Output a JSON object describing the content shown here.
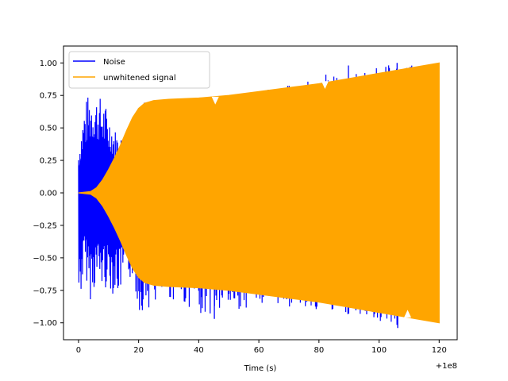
{
  "chart_data": {
    "type": "line",
    "title": "",
    "xlabel": "Time (s)",
    "ylabel": "",
    "x_offset_label": "+1e8",
    "xlim": [
      -5,
      126
    ],
    "ylim": [
      -1.13,
      1.13
    ],
    "x_ticks": [
      0,
      20,
      40,
      60,
      80,
      100,
      120
    ],
    "x_tick_labels": [
      "0",
      "20",
      "40",
      "60",
      "80",
      "100",
      "120"
    ],
    "y_ticks": [
      1.0,
      0.75,
      0.5,
      0.25,
      0.0,
      -0.25,
      -0.5,
      -0.75,
      -1.0
    ],
    "y_tick_labels": [
      "1.00",
      "0.75",
      "0.50",
      "0.25",
      "0.00",
      "−0.25",
      "−0.50",
      "−0.75",
      "−1.00"
    ],
    "grid": false,
    "legend_position": "top-left",
    "series": [
      {
        "name": "Noise",
        "color": "#0000ff",
        "x": [
          0,
          2,
          4,
          6,
          8,
          10,
          12,
          14,
          16,
          18,
          20,
          30,
          45,
          60,
          82,
          90,
          106,
          120
        ],
        "upper": [
          0.35,
          0.69,
          0.8,
          0.76,
          0.73,
          0.63,
          0.5,
          0.45,
          0.35,
          0.3,
          0.7,
          0.72,
          0.76,
          0.78,
          0.9,
          0.92,
          1.0,
          0.97
        ],
        "lower": [
          -0.93,
          -0.6,
          -0.83,
          -0.7,
          -0.75,
          -0.73,
          -0.8,
          -0.78,
          -0.69,
          -0.66,
          -0.92,
          -0.82,
          -0.97,
          -0.85,
          -0.92,
          -0.94,
          -1.04,
          -0.98
        ]
      },
      {
        "name": "unwhitened signal",
        "color": "#ffa500",
        "x": [
          0,
          4,
          6,
          8,
          10,
          12,
          14,
          16,
          18,
          20,
          22,
          25,
          30,
          40,
          50,
          60,
          70,
          80,
          90,
          100,
          110,
          120
        ],
        "envelope": [
          0.0,
          0.01,
          0.04,
          0.1,
          0.18,
          0.27,
          0.37,
          0.48,
          0.58,
          0.65,
          0.69,
          0.71,
          0.72,
          0.73,
          0.75,
          0.78,
          0.81,
          0.84,
          0.88,
          0.92,
          0.96,
          1.0
        ]
      }
    ]
  }
}
